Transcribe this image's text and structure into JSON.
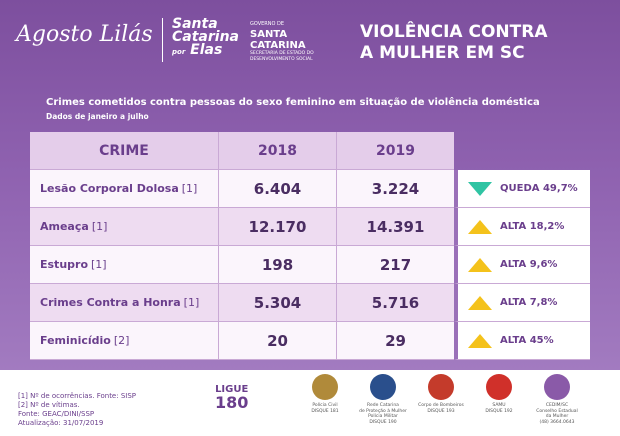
{
  "header": {
    "campaign": "Agosto Lilás",
    "logo_sc_elas": {
      "line1": "Santa",
      "line2": "Catarina",
      "small": "por",
      "line3": "Elas"
    },
    "government": {
      "top": "GOVERNO DE",
      "name1": "SANTA",
      "name2": "CATARINA",
      "dept1": "SECRETARIA DE ESTADO DO",
      "dept2": "DESENVOLVIMENTO SOCIAL"
    },
    "title_line1": "VIOLÊNCIA CONTRA",
    "title_line2": "A MULHER EM SC"
  },
  "subtitle": "Crimes cometidos contra pessoas do sexo feminino em situação de violência doméstica",
  "period": "Dados de janeiro a julho",
  "table": {
    "columns": [
      "CRIME",
      "2018",
      "2019"
    ],
    "rows": [
      {
        "crime": "Lesão Corporal Dolosa",
        "note": "[1]",
        "v2018": "6.404",
        "v2019": "3.224",
        "trend": "QUEDA 49,7%",
        "direction": "down"
      },
      {
        "crime": "Ameaça",
        "note": "[1]",
        "v2018": "12.170",
        "v2019": "14.391",
        "trend": "ALTA 18,2%",
        "direction": "up"
      },
      {
        "crime": "Estupro",
        "note": "[1]",
        "v2018": "198",
        "v2019": "217",
        "trend": "ALTA 9,6%",
        "direction": "up"
      },
      {
        "crime": "Crimes Contra a Honra",
        "note": "[1]",
        "v2018": "5.304",
        "v2019": "5.716",
        "trend": "ALTA 7,8%",
        "direction": "up"
      },
      {
        "crime": "Feminicídio",
        "note": "[2]",
        "v2018": "20",
        "v2019": "29",
        "trend": "ALTA 45%",
        "direction": "up"
      }
    ]
  },
  "footer": {
    "notes": [
      "[1] Nº de ocorrências. Fonte: SISP",
      "[2] Nº de vítimas.",
      "Fonte: GEAC/DINI/SSP",
      "Atualização: 31/07/2019"
    ],
    "hotline": {
      "label": "LIGUE",
      "number": "180"
    },
    "logos": [
      {
        "lines": [
          "Polícia Civil",
          "DISQUE 181"
        ]
      },
      {
        "lines": [
          "Rede Catarina",
          "de Proteção à Mulher",
          "Polícia Militar",
          "DISQUE 190"
        ]
      },
      {
        "lines": [
          "Corpo de Bombeiros",
          "DISQUE 193"
        ]
      },
      {
        "lines": [
          "SAMU",
          "DISQUE 192"
        ]
      },
      {
        "lines": [
          "CEDIM/SC",
          "Conselho Estadual",
          "da Mulher",
          "(48) 3664.0643"
        ]
      }
    ]
  }
}
